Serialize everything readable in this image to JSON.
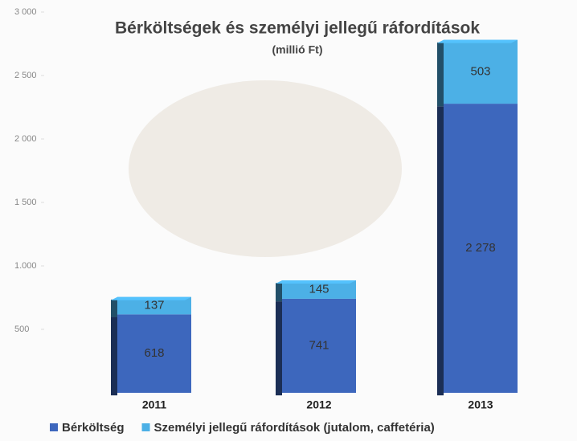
{
  "chart_data": {
    "type": "stacked_bar",
    "title": "Bérköltségek és személyi jellegű ráfordítások",
    "subtitle": "(millió Ft)",
    "categories": [
      "2011",
      "2012",
      "2013"
    ],
    "series": [
      {
        "name": "Bérköltség",
        "color": "#3d67bd",
        "values": [
          618,
          741,
          2278
        ],
        "value_labels": [
          "618",
          "741",
          "2 278"
        ]
      },
      {
        "name": "Személyi jellegű ráfordítások (jutalom, caffetéria)",
        "color": "#4cb0e6",
        "values": [
          137,
          145,
          503
        ]
      }
    ],
    "ylim": [
      0,
      3000
    ],
    "yticks": [
      {
        "value": 500,
        "label": "500"
      },
      {
        "value": 1000,
        "label": "1.000"
      },
      {
        "value": 1500,
        "label": "1 500"
      },
      {
        "value": 2000,
        "label": "2 000"
      },
      {
        "value": 2500,
        "label": "2 500"
      },
      {
        "value": 3000,
        "label": "3 000"
      }
    ],
    "legend": "bottom"
  }
}
